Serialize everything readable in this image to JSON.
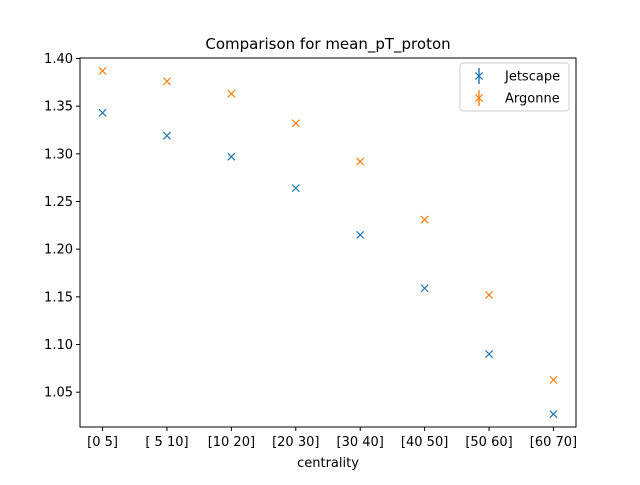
{
  "chart_data": {
    "type": "scatter",
    "title": "Comparison for mean_pT_proton",
    "xlabel": "centrality",
    "ylabel": "",
    "categories": [
      "[0 5]",
      "[ 5 10]",
      "[10 20]",
      "[20 30]",
      "[30 40]",
      "[40 50]",
      "[50 60]",
      "[60 70]"
    ],
    "series": [
      {
        "name": "Jetscape",
        "color": "#1f77b4",
        "marker": "x",
        "values": [
          1.343,
          1.319,
          1.297,
          1.264,
          1.215,
          1.159,
          1.09,
          1.027
        ]
      },
      {
        "name": "Argonne",
        "color": "#ff7f0e",
        "marker": "x",
        "values": [
          1.387,
          1.376,
          1.363,
          1.332,
          1.292,
          1.231,
          1.152,
          1.063
        ]
      }
    ],
    "ylim": [
      1.0135,
      1.4005
    ],
    "yticks": [
      "1.05",
      "1.10",
      "1.15",
      "1.20",
      "1.25",
      "1.30",
      "1.35",
      "1.40"
    ],
    "grid": false,
    "legend": "top-right"
  }
}
